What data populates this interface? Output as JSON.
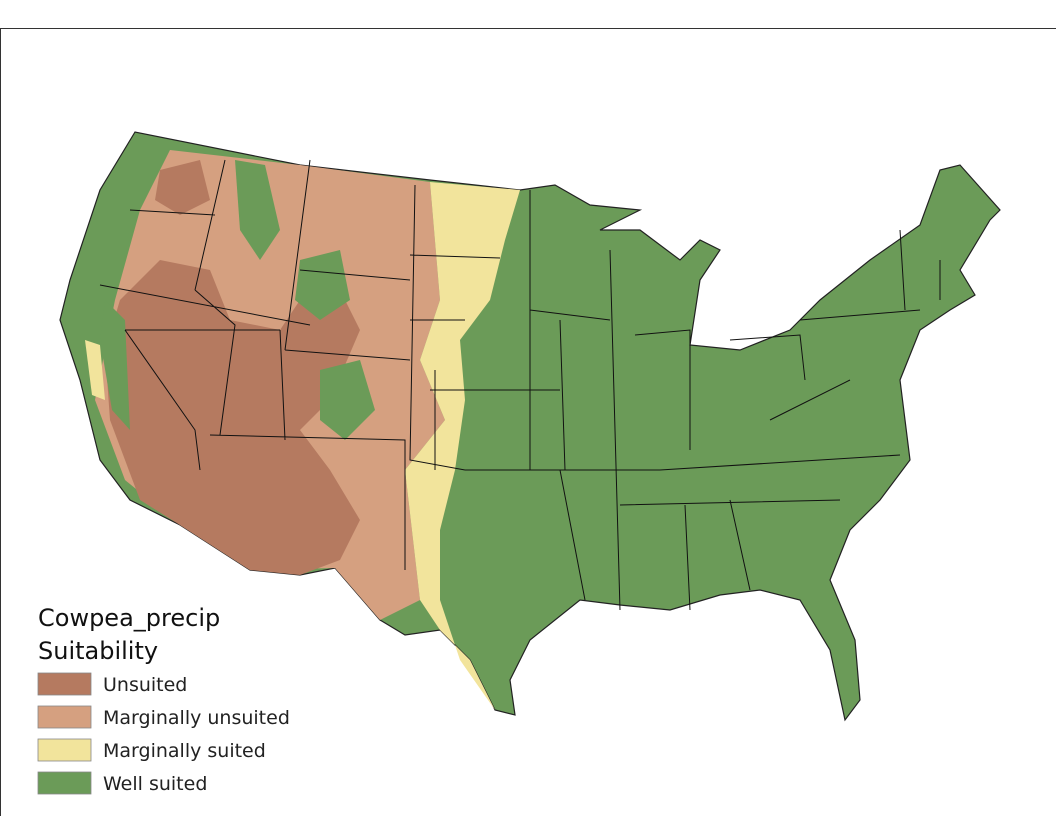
{
  "legend": {
    "title": [
      "Cowpea_precip",
      "Suitability"
    ],
    "items": [
      {
        "label": "Unsuited",
        "color": "#b57a60"
      },
      {
        "label": "Marginally unsuited",
        "color": "#d5a080"
      },
      {
        "label": "Marginally suited",
        "color": "#f2e49c"
      },
      {
        "label": "Well suited",
        "color": "#6b9b58"
      }
    ]
  }
}
